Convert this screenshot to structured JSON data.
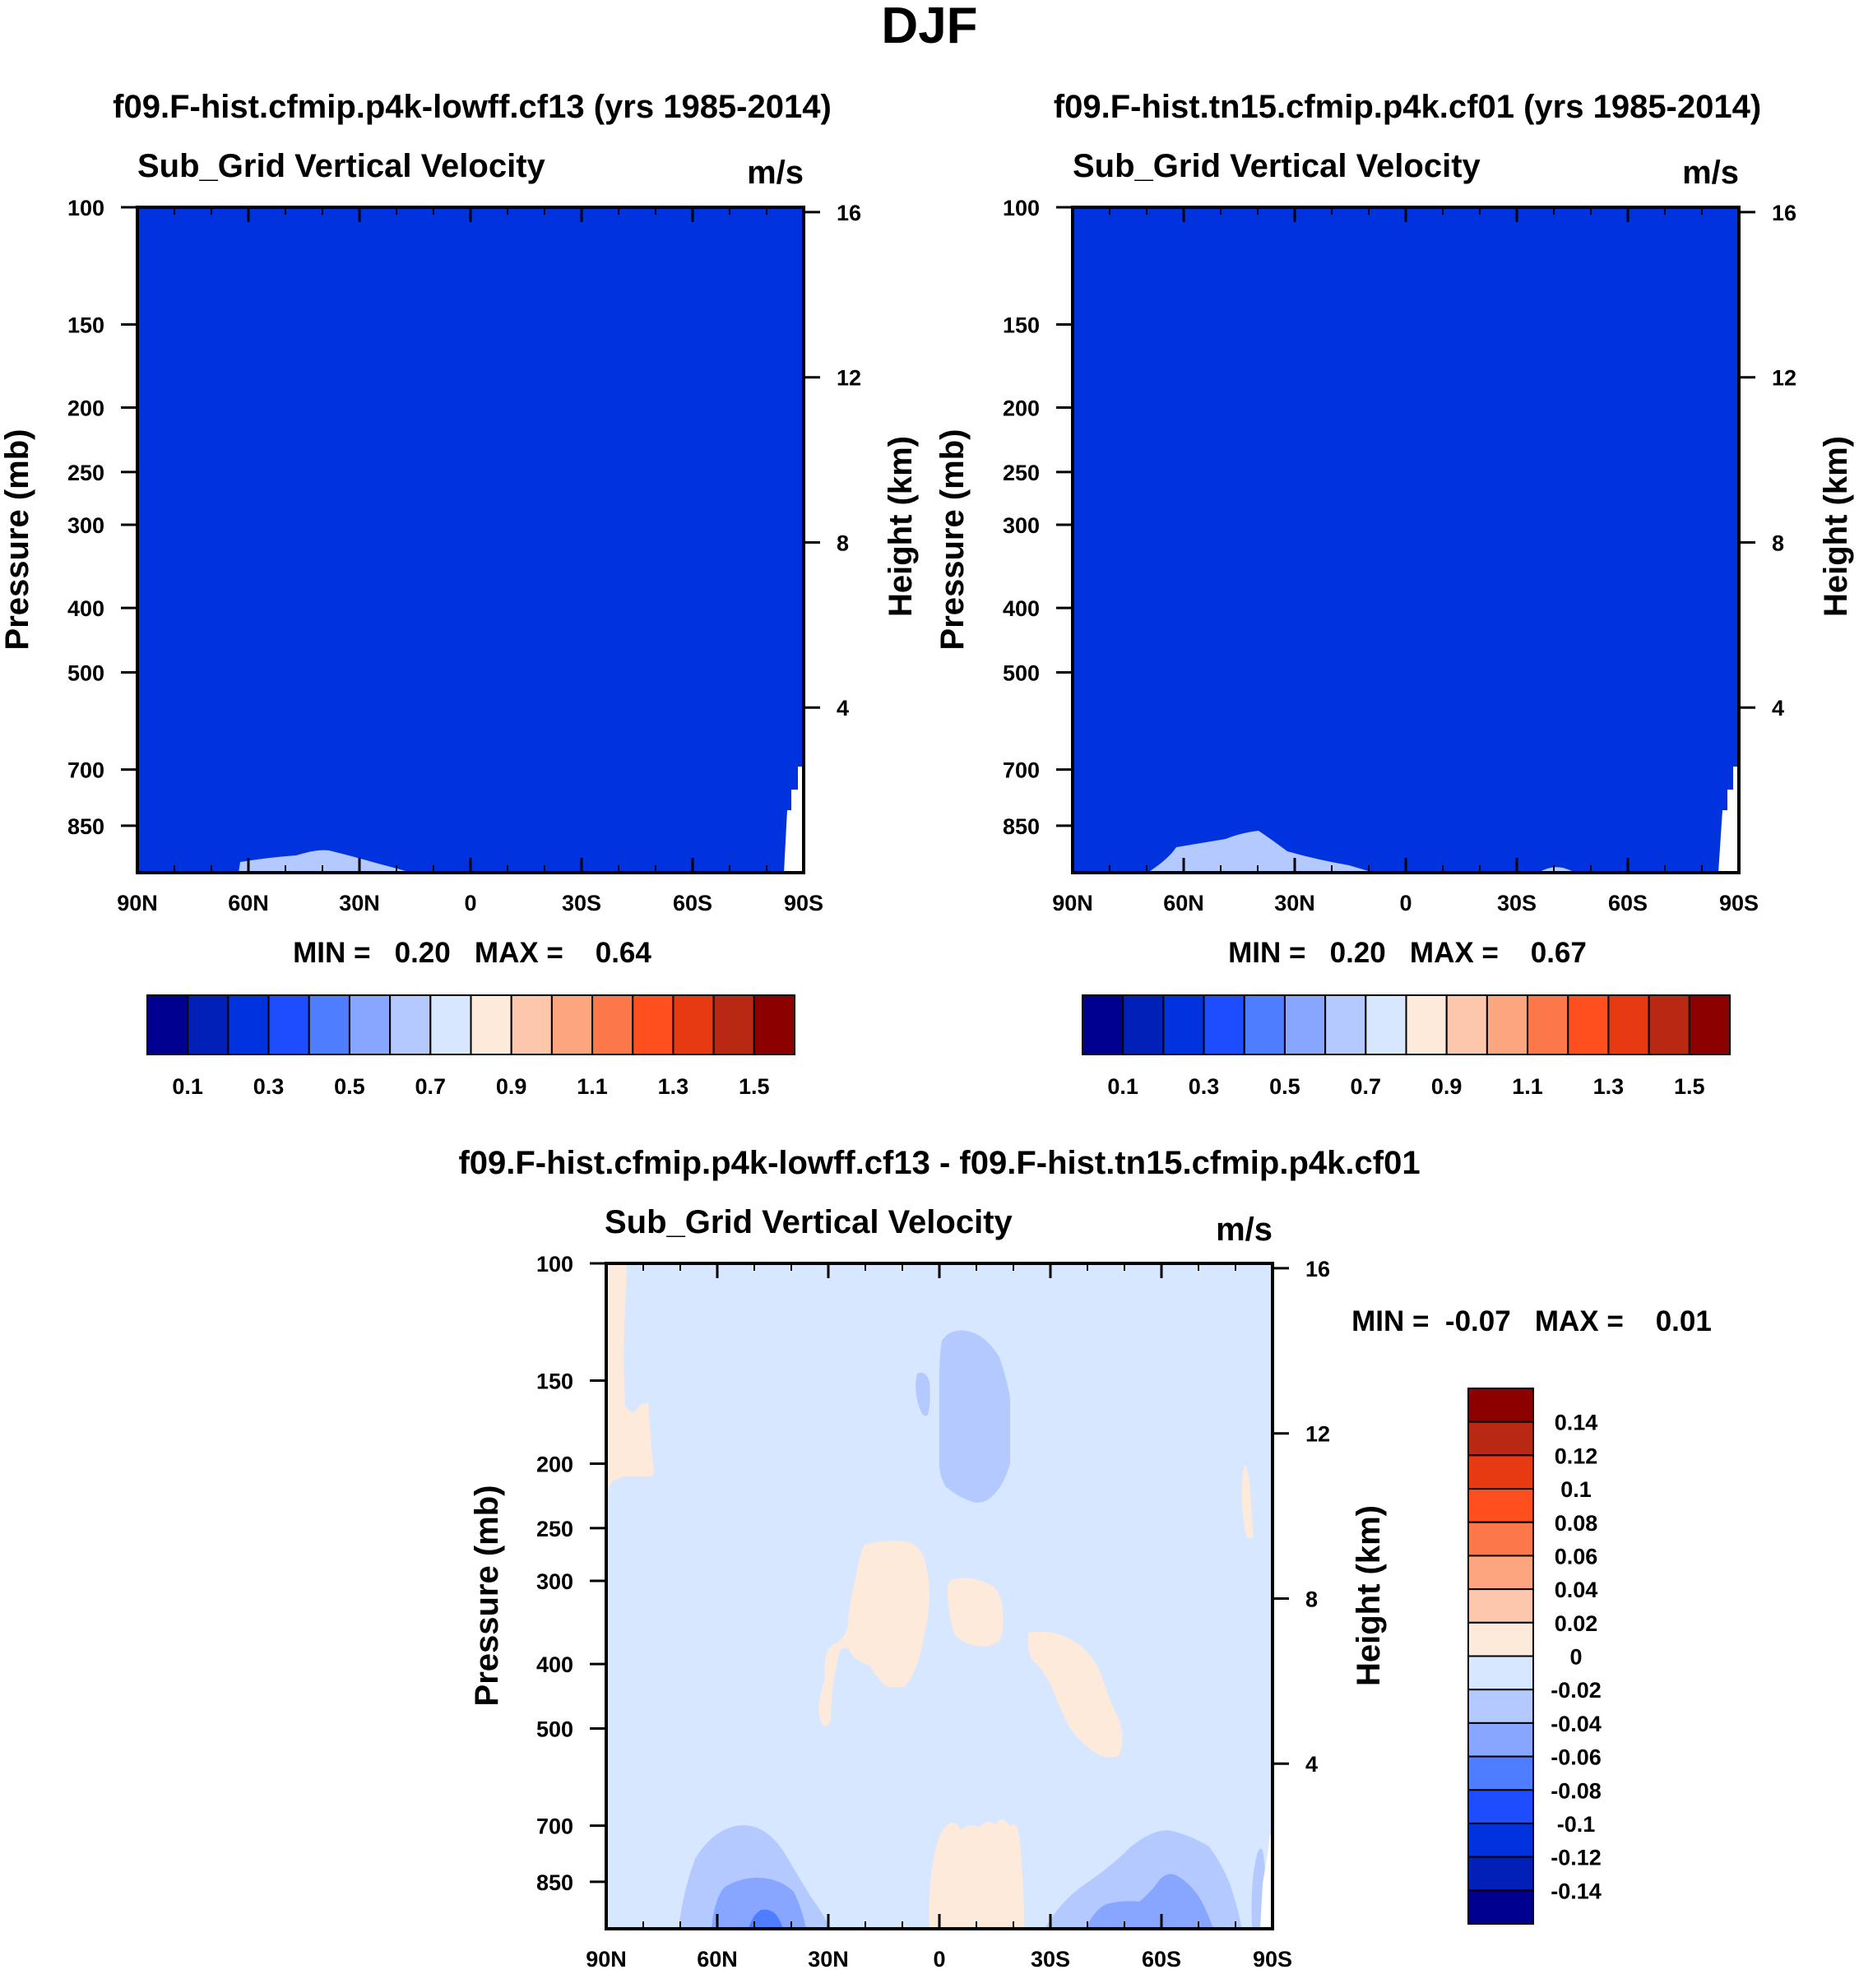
{
  "figure": {
    "title": "DJF"
  },
  "colors": {
    "abs_scale": [
      "#000090",
      "#0020b8",
      "#0033dd",
      "#1e4dff",
      "#4f7dff",
      "#86a6ff",
      "#b4c9ff",
      "#d7e7ff",
      "#fdeadb",
      "#fcc7aa",
      "#fca57f",
      "#fc774a",
      "#ff4f1e",
      "#e83a12",
      "#b82812",
      "#8c0000"
    ],
    "diff_scale": [
      "#000090",
      "#0020b8",
      "#0033dd",
      "#1e4dff",
      "#4f7dff",
      "#86a6ff",
      "#b4c9ff",
      "#d7e7ff",
      "#fdeadb",
      "#fcc7aa",
      "#fca57f",
      "#fc774a",
      "#ff4f1e",
      "#e83a12",
      "#b82812",
      "#8c0000"
    ]
  },
  "chart_data": [
    {
      "type": "heatmap",
      "title": "f09.F-hist.cfmip.p4k-lowff.cf13 (yrs 1985-2014)",
      "subtitle": "Sub_Grid Vertical Velocity",
      "units": "m/s",
      "xlabel": "",
      "ylabel": "Pressure (mb)",
      "ylabel_right": "Height (km)",
      "x_ticks": [
        "90N",
        "60N",
        "30N",
        "0",
        "30S",
        "60S",
        "90S"
      ],
      "y_ticks": [
        100,
        150,
        200,
        250,
        300,
        400,
        500,
        700,
        850
      ],
      "y_right_ticks": [
        16,
        12,
        8,
        4
      ],
      "ylim": [
        1000,
        100
      ],
      "y_scale": "log",
      "min_text": "MIN =   0.20   MAX =    0.64",
      "min": 0.2,
      "max": 0.64,
      "dominant_level": "0.2-0.3",
      "colorbar_labels": [
        "0.1",
        "0.3",
        "0.5",
        "0.7",
        "0.9",
        "1.1",
        "1.3",
        "1.5"
      ],
      "colorbar_levels": [
        0.1,
        0.2,
        0.3,
        0.4,
        0.5,
        0.6,
        0.7,
        0.8,
        0.9,
        1.0,
        1.1,
        1.2,
        1.3,
        1.4,
        1.5
      ],
      "colorbar_orientation": "horizontal"
    },
    {
      "type": "heatmap",
      "title": "f09.F-hist.tn15.cfmip.p4k.cf01 (yrs 1985-2014)",
      "subtitle": "Sub_Grid Vertical Velocity",
      "units": "m/s",
      "xlabel": "",
      "ylabel": "Pressure (mb)",
      "ylabel_right": "Height (km)",
      "x_ticks": [
        "90N",
        "60N",
        "30N",
        "0",
        "30S",
        "60S",
        "90S"
      ],
      "y_ticks": [
        100,
        150,
        200,
        250,
        300,
        400,
        500,
        700,
        850
      ],
      "y_right_ticks": [
        16,
        12,
        8,
        4
      ],
      "ylim": [
        1000,
        100
      ],
      "y_scale": "log",
      "min_text": "MIN =   0.20   MAX =    0.67",
      "min": 0.2,
      "max": 0.67,
      "dominant_level": "0.2-0.3",
      "colorbar_labels": [
        "0.1",
        "0.3",
        "0.5",
        "0.7",
        "0.9",
        "1.1",
        "1.3",
        "1.5"
      ],
      "colorbar_levels": [
        0.1,
        0.2,
        0.3,
        0.4,
        0.5,
        0.6,
        0.7,
        0.8,
        0.9,
        1.0,
        1.1,
        1.2,
        1.3,
        1.4,
        1.5
      ],
      "colorbar_orientation": "horizontal"
    },
    {
      "type": "heatmap",
      "title": "f09.F-hist.cfmip.p4k-lowff.cf13 - f09.F-hist.tn15.cfmip.p4k.cf01",
      "subtitle": "Sub_Grid Vertical Velocity",
      "units": "m/s",
      "xlabel": "",
      "ylabel": "Pressure (mb)",
      "ylabel_right": "Height (km)",
      "x_ticks": [
        "90N",
        "60N",
        "30N",
        "0",
        "30S",
        "60S",
        "90S"
      ],
      "y_ticks": [
        100,
        150,
        200,
        250,
        300,
        400,
        500,
        700,
        850
      ],
      "y_right_ticks": [
        16,
        12,
        8,
        4
      ],
      "ylim": [
        1000,
        100
      ],
      "y_scale": "log",
      "min_text": "MIN =  -0.07   MAX =    0.01",
      "min": -0.07,
      "max": 0.01,
      "dominant_level": "-0.02-0",
      "colorbar_labels": [
        "0.14",
        "0.12",
        "0.1",
        "0.08",
        "0.06",
        "0.04",
        "0.02",
        "0",
        "-0.02",
        "-0.04",
        "-0.06",
        "-0.08",
        "-0.1",
        "-0.12",
        "-0.14"
      ],
      "colorbar_levels": [
        -0.14,
        -0.12,
        -0.1,
        -0.08,
        -0.06,
        -0.04,
        -0.02,
        0,
        0.02,
        0.04,
        0.06,
        0.08,
        0.1,
        0.12,
        0.14
      ],
      "colorbar_orientation": "vertical"
    }
  ]
}
